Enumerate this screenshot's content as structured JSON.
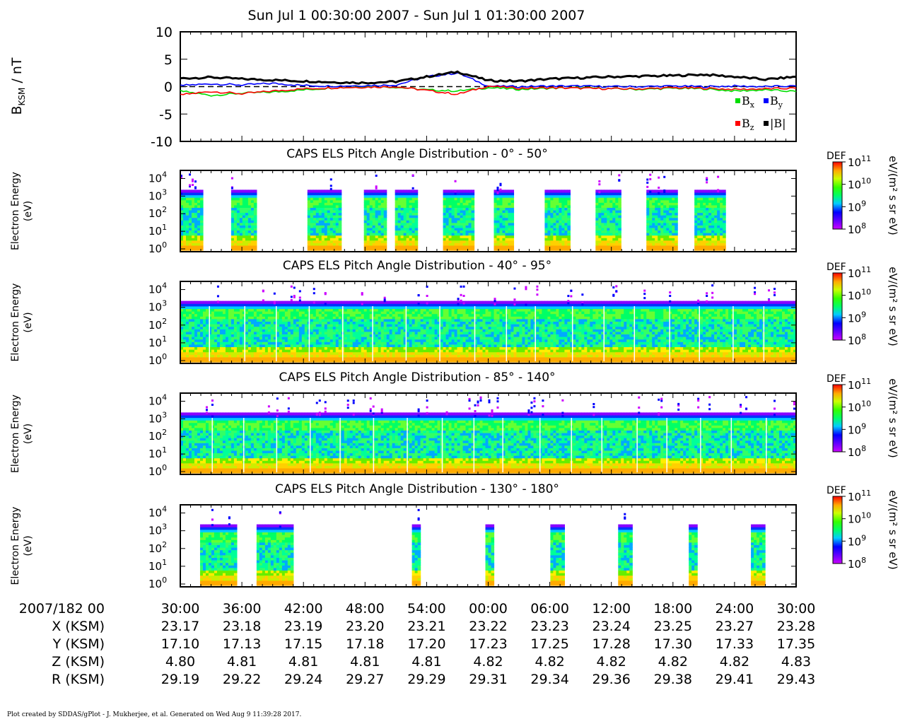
{
  "page": {
    "title": "Sun Jul 1 00:30:00 2007 - Sun Jul 1 01:30:00 2007",
    "credit": "Plot created by SDDAS/gPlot - J. Mukherjee, et al.  Generated on Wed Aug 9 11:39:28 2017."
  },
  "colors": {
    "bx": "#00dd00",
    "by": "#0000ff",
    "bz": "#ff0000",
    "bmag": "#000000",
    "background": "#ffffff"
  },
  "chart_data": [
    {
      "type": "line",
      "ylabel": "B",
      "ylabel_sub": "KSM",
      "ylabel_unit": " / nT",
      "ylim": [
        -10,
        10
      ],
      "yticks": [
        "10",
        "5",
        "0",
        "-5",
        "-10"
      ],
      "ytick_values": [
        10,
        5,
        0,
        -5,
        -10
      ],
      "x": [
        "00:30",
        "00:33",
        "00:36",
        "00:39",
        "00:42",
        "00:45",
        "00:48",
        "00:51",
        "00:54",
        "00:57",
        "01:00",
        "01:03",
        "01:06",
        "01:09",
        "01:12",
        "01:15",
        "01:18",
        "01:21",
        "01:24",
        "01:27",
        "01:30"
      ],
      "legend": [
        {
          "symbol": "B",
          "sub": "x",
          "series": "Bx"
        },
        {
          "symbol": "B",
          "sub": "y",
          "series": "By"
        },
        {
          "symbol": "B",
          "sub": "z",
          "series": "Bz"
        },
        {
          "symbol": "|B|",
          "sub": "",
          "series": "|B|"
        }
      ],
      "series": [
        {
          "name": "Bx",
          "values": [
            -0.8,
            -1.6,
            -1.2,
            -1.0,
            -0.6,
            -0.2,
            0.0,
            -0.1,
            -0.6,
            -0.8,
            -0.2,
            -0.5,
            -0.3,
            -0.2,
            -0.4,
            -0.5,
            -0.3,
            -0.4,
            -0.8,
            -0.6,
            -0.9
          ]
        },
        {
          "name": "By",
          "values": [
            0.2,
            0.5,
            0.3,
            0.6,
            0.2,
            0.1,
            0.2,
            0.3,
            1.8,
            2.5,
            0.1,
            0.0,
            0.1,
            0.1,
            0.0,
            0.0,
            0.1,
            0.0,
            0.1,
            0.0,
            0.1
          ]
        },
        {
          "name": "Bz",
          "values": [
            -1.5,
            -0.9,
            -1.3,
            -0.8,
            -0.4,
            -0.2,
            -0.1,
            0.0,
            -0.7,
            -1.4,
            0.1,
            -0.3,
            -0.2,
            -0.3,
            -0.4,
            -0.4,
            -0.2,
            -0.3,
            -0.5,
            -0.4,
            -0.3
          ]
        },
        {
          "name": "|B|",
          "values": [
            1.5,
            1.7,
            1.4,
            1.2,
            1.0,
            0.8,
            0.7,
            0.9,
            1.8,
            2.7,
            1.1,
            1.0,
            1.4,
            1.6,
            1.8,
            1.9,
            2.0,
            2.2,
            1.8,
            1.3,
            1.8
          ]
        }
      ]
    },
    {
      "type": "heatmap",
      "title": "CAPS ELS Pitch Angle Distribution - 0° - 50°",
      "ylabel": "Electron Energy",
      "yunit": "(eV)",
      "yscale": "log",
      "yticks": [
        0,
        1,
        2,
        3,
        4
      ],
      "colorbar": {
        "label": "DEF",
        "unit": "eV/(m² s sr eV)",
        "exp_range": [
          8,
          11
        ]
      },
      "data_intervals": [
        [
          "00:30",
          "00:32:20"
        ],
        [
          "00:35",
          "00:37:20"
        ],
        [
          "00:42:30",
          "00:45:40"
        ],
        [
          "00:48:00",
          "00:50:00"
        ],
        [
          "00:51:00",
          "00:53:00"
        ],
        [
          "00:55:30",
          "00:58:30"
        ],
        [
          "01:00:30",
          "01:02:30"
        ],
        [
          "01:05:30",
          "01:08:00"
        ],
        [
          "01:10:30",
          "01:13:00"
        ],
        [
          "01:15:30",
          "01:18:30"
        ],
        [
          "01:20:00",
          "01:23:00"
        ]
      ]
    },
    {
      "type": "heatmap",
      "title": "CAPS ELS Pitch Angle Distribution - 40° - 95°",
      "ylabel": "Electron Energy",
      "yunit": "(eV)",
      "yscale": "log",
      "yticks": [
        0,
        1,
        2,
        3,
        4
      ],
      "colorbar": {
        "label": "DEF",
        "unit": "eV/(m² s sr eV)",
        "exp_range": [
          8,
          11
        ]
      },
      "data_intervals": [
        [
          "00:30",
          "01:30"
        ]
      ]
    },
    {
      "type": "heatmap",
      "title": "CAPS ELS Pitch Angle Distribution - 85° - 140°",
      "ylabel": "Electron Energy",
      "yunit": "(eV)",
      "yscale": "log",
      "yticks": [
        0,
        1,
        2,
        3,
        4
      ],
      "colorbar": {
        "label": "DEF",
        "unit": "eV/(m² s sr eV)",
        "exp_range": [
          8,
          11
        ]
      },
      "data_intervals": [
        [
          "00:30",
          "01:30"
        ]
      ]
    },
    {
      "type": "heatmap",
      "title": "CAPS ELS Pitch Angle Distribution - 130° - 180°",
      "ylabel": "Electron Energy",
      "yunit": "(eV)",
      "yscale": "log",
      "yticks": [
        0,
        1,
        2,
        3,
        4
      ],
      "colorbar": {
        "label": "DEF",
        "unit": "eV/(m² s sr eV)",
        "exp_range": [
          8,
          11
        ]
      },
      "data_intervals": [
        [
          "00:32:00",
          "00:35:30"
        ],
        [
          "00:37:30",
          "00:41:00"
        ],
        [
          "00:52:30",
          "00:53:30"
        ],
        [
          "00:59:50",
          "01:00:30"
        ],
        [
          "01:06:10",
          "01:07:20"
        ],
        [
          "01:12:40",
          "01:14:00"
        ],
        [
          "01:19:30",
          "01:20:20"
        ],
        [
          "01:25:30",
          "01:27:00"
        ]
      ]
    }
  ],
  "time_axis": {
    "date_label": "2007/182 00",
    "ticks": [
      "30:00",
      "36:00",
      "42:00",
      "48:00",
      "54:00",
      "00:00",
      "06:00",
      "12:00",
      "18:00",
      "24:00",
      "30:00"
    ]
  },
  "ephemeris": [
    {
      "label": "X (KSM)",
      "values": [
        "23.17",
        "23.18",
        "23.19",
        "23.20",
        "23.21",
        "23.22",
        "23.23",
        "23.24",
        "23.25",
        "23.27",
        "23.28"
      ]
    },
    {
      "label": "Y (KSM)",
      "values": [
        "17.10",
        "17.13",
        "17.15",
        "17.18",
        "17.20",
        "17.23",
        "17.25",
        "17.28",
        "17.30",
        "17.33",
        "17.35"
      ]
    },
    {
      "label": "Z (KSM)",
      "values": [
        "4.80",
        "4.81",
        "4.81",
        "4.81",
        "4.81",
        "4.82",
        "4.82",
        "4.82",
        "4.82",
        "4.82",
        "4.83"
      ]
    },
    {
      "label": "R (KSM)",
      "values": [
        "29.19",
        "29.22",
        "29.24",
        "29.27",
        "29.29",
        "29.31",
        "29.34",
        "29.36",
        "29.38",
        "29.41",
        "29.43"
      ]
    }
  ]
}
